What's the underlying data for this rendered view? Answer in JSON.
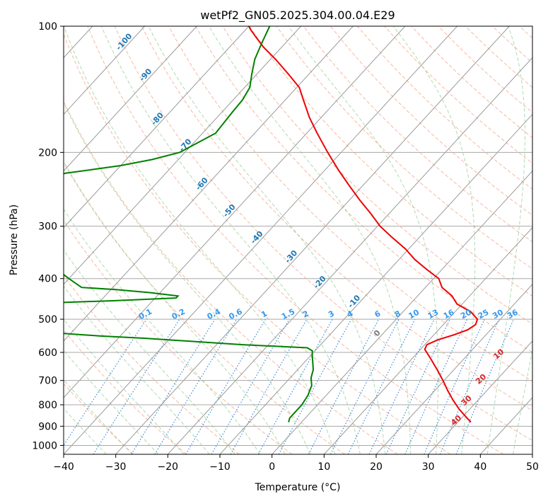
{
  "chart_data": {
    "type": "line",
    "title": "wetPf2_GN05.2025.304.00.04.E29",
    "xlabel": "Temperature (°C)",
    "ylabel": "Pressure (hPa)",
    "xlim": [
      -40,
      50
    ],
    "ylim": [
      1050,
      100
    ],
    "x_ticks": [
      -40,
      -30,
      -20,
      -10,
      0,
      10,
      20,
      30,
      40,
      50
    ],
    "x_tick_labels": [
      "−40",
      "−30",
      "−20",
      "−10",
      "0",
      "10",
      "20",
      "30",
      "40",
      "50"
    ],
    "y_ticks": [
      100,
      200,
      300,
      400,
      500,
      600,
      700,
      800,
      900,
      1000
    ],
    "y_tick_labels": [
      "100",
      "200",
      "300",
      "400",
      "500",
      "600",
      "700",
      "800",
      "900",
      "1000"
    ],
    "grid": true,
    "skew_note": "skew-T log-p diagram",
    "colors": {
      "temperature": "#ee0000",
      "dewpoint": "#008000",
      "isotherm": "#9a9a9a",
      "dry_adiabat": "#f5a080",
      "moist_adiabat": "#8fca8f",
      "mixing_ratio": "#2f86d6",
      "dry_adiabat_label": "#d62728",
      "moist_adiabat_label": "#1f77b4",
      "mixing_ratio_label": "#3399ee"
    },
    "series": [
      {
        "name": "Temperature",
        "pressure": [
          880,
          860,
          820,
          780,
          740,
          700,
          660,
          620,
          590,
          575,
          560,
          545,
          530,
          515,
          500,
          480,
          460,
          440,
          420,
          400,
          380,
          360,
          340,
          320,
          300,
          280,
          260,
          240,
          220,
          200,
          180,
          165,
          150,
          140,
          130,
          120,
          112,
          106,
          102,
          100
        ],
        "temperature": [
          32.5,
          31.0,
          28.0,
          25.2,
          22.5,
          19.8,
          16.8,
          13.5,
          10.8,
          10.4,
          11.6,
          13.8,
          15.6,
          16.2,
          15.6,
          13.0,
          9.0,
          6.6,
          3.2,
          1.0,
          -3.0,
          -7.0,
          -10.6,
          -15.0,
          -19.5,
          -23.5,
          -28.0,
          -32.6,
          -37.5,
          -42.6,
          -48.0,
          -52.3,
          -56.5,
          -59.5,
          -64.0,
          -69.0,
          -73.6,
          -76.8,
          -79.0,
          -80.0
        ]
      },
      {
        "name": "Dewpoint",
        "pressure": [
          880,
          860,
          840,
          800,
          760,
          720,
          690,
          660,
          630,
          605,
          595,
          585,
          575,
          555,
          548,
          540,
          520,
          480,
          458,
          452,
          445,
          440,
          432,
          425,
          420,
          400,
          380,
          360,
          340,
          320,
          300,
          280,
          260,
          240,
          232,
          228,
          224,
          220,
          215,
          208,
          200,
          180,
          160,
          150,
          140,
          130,
          120,
          110,
          100
        ],
        "dewpoint": [
          -2.5,
          -3.0,
          -3.0,
          -3.0,
          -3.5,
          -4.5,
          -6.0,
          -7.0,
          -8.6,
          -10.0,
          -10.5,
          -12.0,
          -25.0,
          -45.0,
          -54.0,
          -62.0,
          -70.0,
          -74.0,
          -71.5,
          -58.0,
          -46.0,
          -46.0,
          -52.0,
          -59.0,
          -66.0,
          -70.0,
          -74.0,
          -78.0,
          -81.0,
          -84.0,
          -87.0,
          -88.0,
          -89.0,
          -91.0,
          -93.0,
          -92.0,
          -89.0,
          -85.0,
          -80.0,
          -75.0,
          -71.0,
          -67.5,
          -68.0,
          -68.2,
          -69.0,
          -71.0,
          -73.0,
          -74.5,
          -76.0
        ]
      }
    ],
    "dry_adiabat_labels": [
      "10",
      "20",
      "30",
      "40"
    ],
    "moist_adiabat_labels": [
      "-100",
      "-90",
      "-80",
      "-70",
      "-60",
      "-50",
      "-40",
      "-30",
      "-20",
      "-10",
      "0"
    ],
    "mixing_ratio_labels": [
      "0.1",
      "0.2",
      "0.4",
      "0.6",
      "1",
      "1.5",
      "2",
      "3",
      "4",
      "6",
      "8",
      "10",
      "13",
      "16",
      "20",
      "25",
      "30",
      "36"
    ]
  }
}
